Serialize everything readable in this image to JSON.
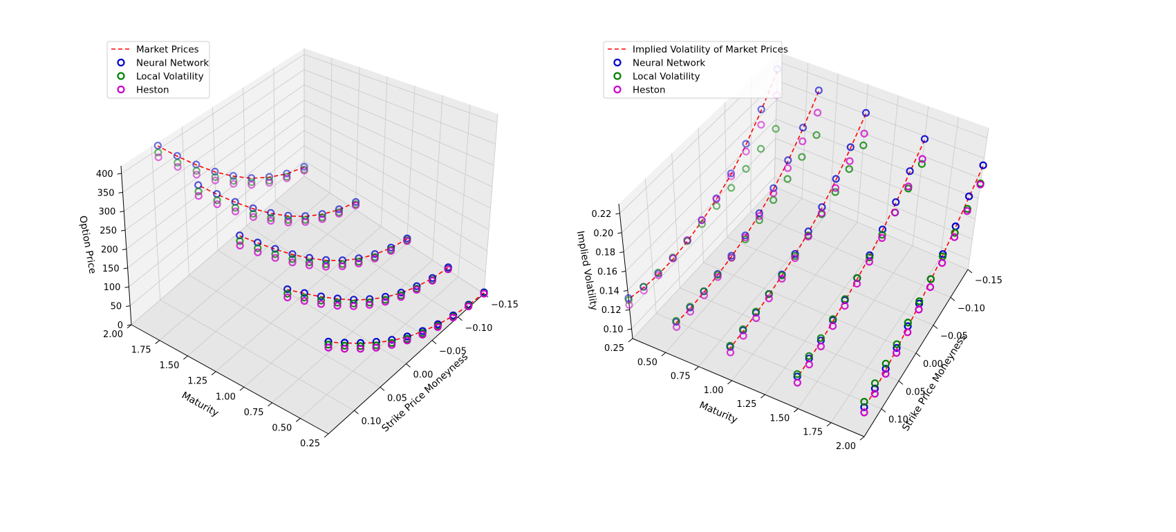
{
  "chart_data": [
    {
      "type": "scatter3d",
      "title": "",
      "xlabel": "Strike Price Moneyness",
      "ylabel": "Maturity",
      "zlabel": "Option Price",
      "xlim": [
        -0.15,
        0.15
      ],
      "ylim": [
        0.25,
        2.0
      ],
      "zlim": [
        0,
        420
      ],
      "xticks": [
        "0.10",
        "0.05",
        "0.00",
        "−0.05",
        "−0.10",
        "−0.15"
      ],
      "xtick_values": [
        0.1,
        0.05,
        0.0,
        -0.05,
        -0.1,
        -0.15
      ],
      "yticks": [
        "2.00",
        "1.75",
        "1.50",
        "1.25",
        "1.00",
        "0.75",
        "0.50",
        "0.25"
      ],
      "ytick_values": [
        2.0,
        1.75,
        1.5,
        1.25,
        1.0,
        0.75,
        0.5,
        0.25
      ],
      "zticks": [
        "0",
        "50",
        "100",
        "150",
        "200",
        "250",
        "300",
        "350",
        "400"
      ],
      "ztick_values": [
        0,
        50,
        100,
        150,
        200,
        250,
        300,
        350,
        400
      ],
      "grid": true,
      "legend_position": "top-left",
      "legend": [
        "Market Prices",
        "Neural Network",
        "Local Volatility",
        "Heston"
      ],
      "maturities": [
        0.25,
        0.6,
        1.0,
        1.5,
        2.0
      ],
      "moneyness": [
        -0.15,
        -0.12,
        -0.09,
        -0.06,
        -0.03,
        0.0,
        0.03,
        0.06,
        0.09,
        0.12,
        0.15
      ],
      "series": [
        {
          "name": "Market Prices",
          "style": "dashed-line",
          "color": "#ff0000",
          "values": [
            [
              2,
              6,
              14,
              27,
              45,
              67,
              94,
              126,
              162,
              202,
              245
            ],
            [
              6,
              15,
              30,
              50,
              76,
              107,
              143,
              184,
              228,
              276,
              326
            ],
            [
              12,
              26,
              47,
              74,
              107,
              146,
              190,
              238,
              290,
              345,
              402
            ],
            [
              22,
              43,
              71,
              106,
              147,
              194,
              245,
              300,
              358,
              418,
              420
            ],
            [
              30,
              55,
              90,
              130,
              178,
              230,
              288,
              348,
              410,
              420,
              420
            ]
          ]
        },
        {
          "name": "Neural Network",
          "style": "circle",
          "color": "#0000cc",
          "values": [
            [
              3,
              7,
              15,
              28,
              46,
              68,
              96,
              128,
              163,
              203,
              246
            ],
            [
              7,
              16,
              31,
              51,
              77,
              108,
              144,
              185,
              229,
              277,
              327
            ],
            [
              13,
              27,
              48,
              75,
              108,
              147,
              191,
              239,
              291,
              346,
              403
            ],
            [
              23,
              44,
              72,
              107,
              148,
              195,
              246,
              301,
              359,
              418,
              420
            ],
            [
              31,
              56,
              91,
              131,
              179,
              231,
              289,
              349,
              411,
              420,
              420
            ]
          ]
        },
        {
          "name": "Local Volatility",
          "style": "circle",
          "color": "#008000",
          "values": [
            [
              1,
              5,
              12,
              24,
              41,
              62,
              88,
              119,
              155,
              195,
              238
            ],
            [
              3,
              11,
              25,
              44,
              69,
              99,
              134,
              174,
              218,
              265,
              315
            ],
            [
              8,
              21,
              40,
              66,
              98,
              136,
              179,
              226,
              277,
              331,
              388
            ],
            [
              16,
              35,
              62,
              96,
              136,
              181,
              231,
              285,
              342,
              401,
              420
            ],
            [
              22,
              46,
              79,
              118,
              164,
              215,
              271,
              330,
              392,
              420,
              420
            ]
          ]
        },
        {
          "name": "Heston",
          "style": "circle",
          "color": "#cc00cc",
          "values": [
            [
              0,
              3,
              10,
              21,
              37,
              58,
              83,
              113,
              148,
              187,
              230
            ],
            [
              2,
              9,
              22,
              40,
              64,
              93,
              127,
              166,
              209,
              256,
              305
            ],
            [
              6,
              18,
              36,
              61,
              92,
              129,
              171,
              217,
              267,
              320,
              376
            ],
            [
              13,
              31,
              57,
              90,
              129,
              173,
              222,
              275,
              331,
              389,
              420
            ],
            [
              18,
              41,
              72,
              110,
              155,
              205,
              260,
              318,
              379,
              420,
              420
            ]
          ]
        }
      ]
    },
    {
      "type": "scatter3d",
      "title": "",
      "xlabel": "Strike Price Moneyness",
      "ylabel": "Maturity",
      "zlabel": "Implied Volatility",
      "xlim": [
        -0.15,
        0.15
      ],
      "ylim": [
        0.25,
        2.0
      ],
      "zlim": [
        0.09,
        0.23
      ],
      "xticks": [
        "−0.15",
        "−0.10",
        "−0.05",
        "0.00",
        "0.05",
        "0.10"
      ],
      "xtick_values": [
        -0.15,
        -0.1,
        -0.05,
        0.0,
        0.05,
        0.1
      ],
      "yticks": [
        "0.25",
        "0.50",
        "0.75",
        "1.00",
        "1.25",
        "1.50",
        "1.75",
        "2.00"
      ],
      "ytick_values": [
        0.25,
        0.5,
        0.75,
        1.0,
        1.25,
        1.5,
        1.75,
        2.0
      ],
      "zticks": [
        "0.10",
        "0.12",
        "0.14",
        "0.16",
        "0.18",
        "0.20",
        "0.22"
      ],
      "ztick_values": [
        0.1,
        0.12,
        0.14,
        0.16,
        0.18,
        0.2,
        0.22
      ],
      "grid": true,
      "legend_position": "top-left",
      "legend": [
        "Implied Volatility of Market Prices",
        "Neural Network",
        "Local Volatility",
        "Heston"
      ],
      "maturities": [
        0.25,
        0.6,
        1.0,
        1.5,
        2.0
      ],
      "moneyness": [
        -0.15,
        -0.12,
        -0.09,
        -0.06,
        -0.03,
        0.0,
        0.03,
        0.06,
        0.09,
        0.12,
        0.15
      ],
      "series": [
        {
          "name": "Implied Volatility of Market Prices",
          "style": "dashed-line",
          "color": "#ff0000",
          "values": [
            [
              0.21,
              0.185,
              0.165,
              0.15,
              0.14,
              0.133,
              0.128,
              0.125,
              0.125,
              0.127,
              0.131
            ],
            [
              0.205,
              0.182,
              0.164,
              0.151,
              0.141,
              0.134,
              0.129,
              0.126,
              0.124,
              0.123,
              0.124
            ],
            [
              0.2,
              0.18,
              0.163,
              0.15,
              0.141,
              0.134,
              0.129,
              0.125,
              0.122,
              0.12,
              0.119
            ],
            [
              0.196,
              0.178,
              0.162,
              0.15,
              0.14,
              0.133,
              0.127,
              0.123,
              0.119,
              0.117,
              0.115
            ],
            [
              0.192,
              0.175,
              0.16,
              0.148,
              0.139,
              0.131,
              0.125,
              0.12,
              0.116,
              0.113,
              0.111
            ]
          ]
        },
        {
          "name": "Neural Network",
          "style": "circle",
          "color": "#0000cc",
          "values": [
            [
              0.212,
              0.186,
              0.166,
              0.151,
              0.141,
              0.134,
              0.129,
              0.126,
              0.126,
              0.128,
              0.132
            ],
            [
              0.206,
              0.183,
              0.165,
              0.152,
              0.142,
              0.135,
              0.13,
              0.127,
              0.125,
              0.124,
              0.125
            ],
            [
              0.201,
              0.181,
              0.164,
              0.151,
              0.142,
              0.135,
              0.13,
              0.126,
              0.123,
              0.121,
              0.12
            ],
            [
              0.197,
              0.179,
              0.163,
              0.151,
              0.141,
              0.134,
              0.128,
              0.124,
              0.12,
              0.118,
              0.116
            ],
            [
              0.193,
              0.176,
              0.161,
              0.149,
              0.14,
              0.132,
              0.126,
              0.121,
              0.117,
              0.114,
              0.112
            ]
          ]
        },
        {
          "name": "Local Volatility",
          "style": "circle",
          "color": "#008000",
          "values": [
            [
              0.15,
              0.145,
              0.14,
              0.136,
              0.133,
              0.13,
              0.128,
              0.127,
              0.127,
              0.128,
              0.13
            ],
            [
              0.16,
              0.153,
              0.146,
              0.14,
              0.135,
              0.131,
              0.128,
              0.126,
              0.125,
              0.125,
              0.126
            ],
            [
              0.168,
              0.159,
              0.151,
              0.144,
              0.138,
              0.133,
              0.129,
              0.126,
              0.124,
              0.122,
              0.121
            ],
            [
              0.172,
              0.162,
              0.153,
              0.146,
              0.139,
              0.134,
              0.129,
              0.125,
              0.122,
              0.12,
              0.118
            ],
            [
              0.175,
              0.164,
              0.155,
              0.147,
              0.14,
              0.134,
              0.129,
              0.124,
              0.121,
              0.118,
              0.116
            ]
          ]
        },
        {
          "name": "Heston",
          "style": "circle",
          "color": "#cc00cc",
          "values": [
            [
              0.185,
              0.17,
              0.158,
              0.148,
              0.14,
              0.134,
              0.129,
              0.126,
              0.124,
              0.124,
              0.125
            ],
            [
              0.183,
              0.169,
              0.157,
              0.147,
              0.139,
              0.133,
              0.128,
              0.124,
              0.121,
              0.12,
              0.12
            ],
            [
              0.18,
              0.167,
              0.155,
              0.145,
              0.137,
              0.131,
              0.126,
              0.122,
              0.118,
              0.116,
              0.115
            ],
            [
              0.177,
              0.164,
              0.153,
              0.143,
              0.135,
              0.129,
              0.123,
              0.119,
              0.115,
              0.113,
              0.111
            ],
            [
              0.174,
              0.162,
              0.151,
              0.141,
              0.133,
              0.127,
              0.121,
              0.117,
              0.113,
              0.11,
              0.108
            ]
          ]
        }
      ]
    }
  ]
}
